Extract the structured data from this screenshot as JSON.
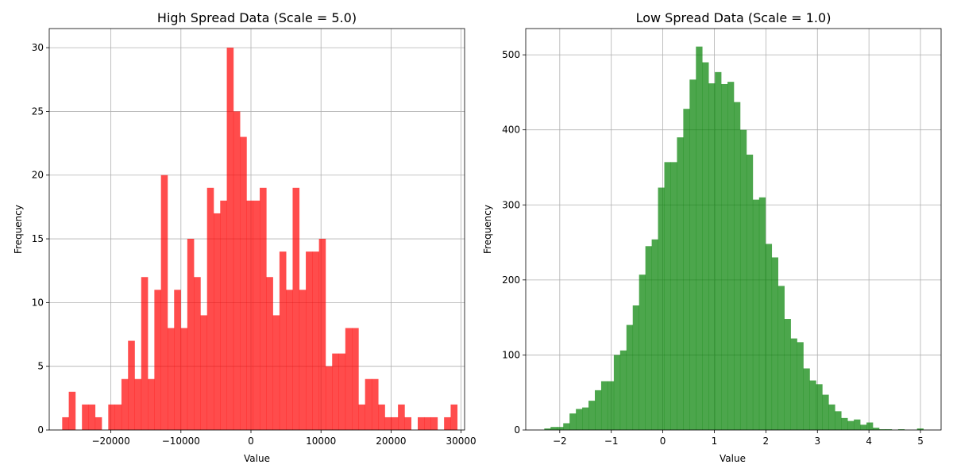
{
  "chart_data": [
    {
      "type": "bar",
      "title": "High Spread Data (Scale = 5.0)",
      "xlabel": "Value",
      "ylabel": "Frequency",
      "color": "#ff0000",
      "alpha": 0.7,
      "grid": true,
      "xlim": [
        -28800,
        30500
      ],
      "ylim": [
        0,
        31.5
      ],
      "xticks": [
        -20000,
        -10000,
        0,
        10000,
        20000,
        30000
      ],
      "xtick_labels": [
        "−20000",
        "−10000",
        "0",
        "10000",
        "20000",
        "30000"
      ],
      "yticks": [
        0,
        5,
        10,
        15,
        20,
        25,
        30
      ],
      "ytick_labels": [
        "0",
        "5",
        "10",
        "15",
        "20",
        "25",
        "30"
      ],
      "bin_start": -26950,
      "bin_width": 940,
      "values": [
        1,
        3,
        0,
        2,
        2,
        1,
        0,
        2,
        2,
        4,
        7,
        4,
        12,
        4,
        11,
        20,
        8,
        11,
        8,
        15,
        12,
        9,
        19,
        17,
        18,
        30,
        25,
        23,
        18,
        18,
        19,
        12,
        9,
        14,
        11,
        19,
        11,
        14,
        14,
        15,
        5,
        6,
        6,
        8,
        8,
        2,
        4,
        4,
        2,
        1,
        1,
        2,
        1,
        0,
        1,
        1,
        1,
        0,
        1,
        2
      ]
    },
    {
      "type": "bar",
      "title": "Low Spread Data (Scale = 1.0)",
      "xlabel": "Value",
      "ylabel": "Frequency",
      "color": "#008000",
      "alpha": 0.7,
      "grid": true,
      "xlim": [
        -2.66,
        5.4
      ],
      "ylim": [
        0,
        535
      ],
      "xticks": [
        -2,
        -1,
        0,
        1,
        2,
        3,
        4,
        5
      ],
      "xtick_labels": [
        "−2",
        "−1",
        "0",
        "1",
        "2",
        "3",
        "4",
        "5"
      ],
      "yticks": [
        0,
        100,
        200,
        300,
        400,
        500
      ],
      "ytick_labels": [
        "0",
        "100",
        "200",
        "300",
        "400",
        "500"
      ],
      "bin_start": -2.3,
      "bin_width": 0.1226,
      "values": [
        2,
        4,
        4,
        9,
        22,
        28,
        30,
        39,
        53,
        65,
        65,
        100,
        106,
        140,
        166,
        207,
        245,
        254,
        323,
        357,
        357,
        390,
        428,
        467,
        511,
        490,
        462,
        477,
        461,
        464,
        437,
        400,
        367,
        307,
        310,
        248,
        230,
        192,
        148,
        122,
        117,
        82,
        66,
        61,
        47,
        34,
        25,
        16,
        12,
        14,
        7,
        10,
        3,
        1,
        1,
        0,
        1,
        0,
        0,
        2
      ]
    }
  ]
}
